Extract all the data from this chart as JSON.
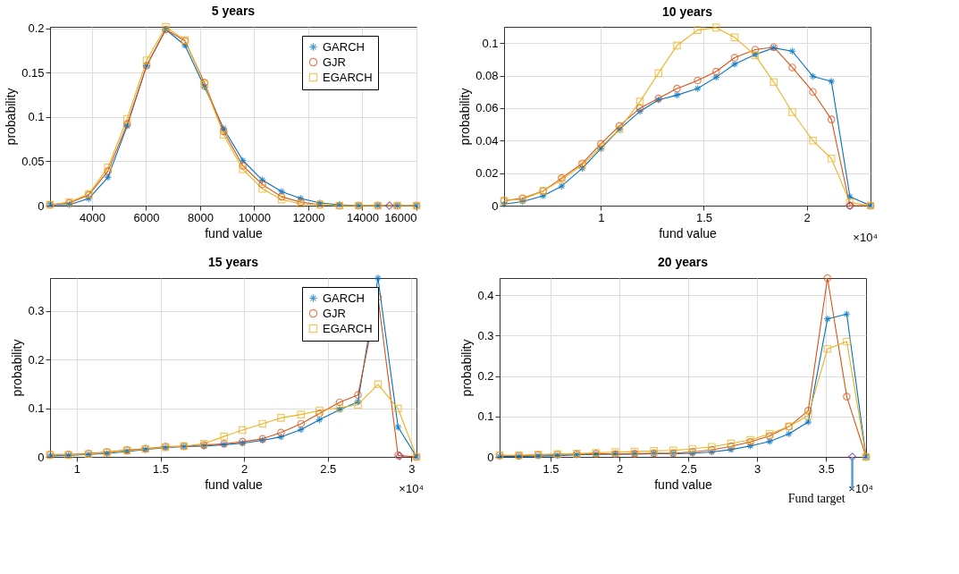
{
  "chart_data": [
    {
      "type": "line",
      "title": "5 years",
      "xlabel": "fund value",
      "ylabel": "probability",
      "xlim": [
        2450,
        16000
      ],
      "ylim": [
        0,
        0.202
      ],
      "xticks": [
        4000,
        6000,
        8000,
        10000,
        12000,
        14000,
        16000
      ],
      "yticks": [
        0,
        0.05,
        0.1,
        0.15,
        0.2
      ],
      "grid": true,
      "legend": "top right",
      "x": [
        2450,
        3160,
        3880,
        4590,
        5300,
        6020,
        6730,
        7440,
        8160,
        8870,
        9580,
        10300,
        11010,
        11720,
        12430,
        13150,
        13860,
        14570,
        15290,
        16000
      ],
      "series": [
        {
          "name": "GARCH",
          "color": "#0072bd",
          "marker": "cross",
          "values": [
            0.001,
            0.001,
            0.008,
            0.032,
            0.09,
            0.158,
            0.199,
            0.181,
            0.134,
            0.087,
            0.051,
            0.029,
            0.016,
            0.008,
            0.003,
            0.001,
            0,
            0,
            0,
            0
          ]
        },
        {
          "name": "GJR",
          "color": "#d95319",
          "marker": "circle",
          "values": [
            0.001,
            0.003,
            0.012,
            0.039,
            0.092,
            0.158,
            0.199,
            0.186,
            0.139,
            0.084,
            0.045,
            0.024,
            0.01,
            0.004,
            0.001,
            0,
            0,
            0,
            0,
            0
          ]
        },
        {
          "name": "EGARCH",
          "color": "#edb120",
          "marker": "square",
          "values": [
            0.001,
            0.004,
            0.013,
            0.043,
            0.098,
            0.164,
            0.202,
            0.187,
            0.137,
            0.08,
            0.041,
            0.019,
            0.007,
            0.002,
            0.001,
            0,
            0,
            0,
            0,
            0
          ]
        },
        {
          "type": "scatter",
          "color": "#7e2f8e",
          "marker": "diamond",
          "x": [
            15000
          ],
          "values": [
            0
          ]
        }
      ]
    },
    {
      "type": "line",
      "title": "10 years",
      "xlabel": "fund value",
      "ylabel": "probability",
      "xlim": [
        0.53,
        2.31
      ],
      "ylim": [
        0,
        0.11
      ],
      "xticks": [
        1,
        1.5,
        2
      ],
      "yticks": [
        0,
        0.02,
        0.04,
        0.06,
        0.08,
        0.1
      ],
      "grid": true,
      "legend": "center",
      "annotations": [
        "×10⁴"
      ],
      "x": [
        0.53,
        0.62,
        0.72,
        0.81,
        0.91,
        1.0,
        1.09,
        1.19,
        1.28,
        1.37,
        1.47,
        1.56,
        1.65,
        1.75,
        1.84,
        1.93,
        2.03,
        2.12,
        2.21,
        2.31
      ],
      "series": [
        {
          "name": "GARCH",
          "color": "#0072bd",
          "marker": "cross",
          "values": [
            0.001,
            0.0025,
            0.006,
            0.012,
            0.023,
            0.035,
            0.047,
            0.058,
            0.065,
            0.068,
            0.072,
            0.079,
            0.087,
            0.093,
            0.097,
            0.095,
            0.0795,
            0.0765,
            0.0055,
            0
          ]
        },
        {
          "name": "GJR",
          "color": "#d95319",
          "marker": "circle",
          "values": [
            0.003,
            0.0045,
            0.009,
            0.017,
            0.026,
            0.038,
            0.049,
            0.06,
            0.066,
            0.072,
            0.077,
            0.0825,
            0.091,
            0.096,
            0.0975,
            0.085,
            0.07,
            0.053,
            0,
            0
          ]
        },
        {
          "name": "EGARCH",
          "color": "#edb120",
          "marker": "square",
          "values": [
            0.003,
            0.004,
            0.009,
            0.016,
            0.025,
            0.036,
            0.047,
            0.064,
            0.0815,
            0.0985,
            0.108,
            0.1095,
            0.1035,
            0.0925,
            0.076,
            0.0575,
            0.04,
            0.029,
            0.002,
            0
          ]
        },
        {
          "type": "scatter",
          "color": "#7e2f8e",
          "marker": "diamond",
          "x": [
            2.21
          ],
          "values": [
            0
          ]
        }
      ]
    },
    {
      "type": "line",
      "title": "15 years",
      "xlabel": "fund value",
      "ylabel": "probability",
      "xlim": [
        0.84,
        3.03
      ],
      "ylim": [
        0,
        0.367
      ],
      "xticks": [
        1,
        1.5,
        2,
        2.5,
        3
      ],
      "yticks": [
        0,
        0.1,
        0.2,
        0.3
      ],
      "grid": true,
      "legend": "top right",
      "annotations": [
        "×10⁴"
      ],
      "x": [
        0.84,
        0.95,
        1.07,
        1.18,
        1.3,
        1.41,
        1.53,
        1.64,
        1.76,
        1.88,
        1.99,
        2.11,
        2.22,
        2.34,
        2.45,
        2.57,
        2.68,
        2.8,
        2.92,
        3.03
      ],
      "series": [
        {
          "name": "GARCH",
          "color": "#0072bd",
          "marker": "cross",
          "values": [
            0.002,
            0.003,
            0.005,
            0.007,
            0.011,
            0.015,
            0.019,
            0.021,
            0.022,
            0.025,
            0.028,
            0.034,
            0.041,
            0.056,
            0.076,
            0.097,
            0.113,
            0.367,
            0.061,
            0
          ]
        },
        {
          "name": "GJR",
          "color": "#d95319",
          "marker": "circle",
          "values": [
            0.005,
            0.005,
            0.007,
            0.01,
            0.014,
            0.017,
            0.021,
            0.022,
            0.024,
            0.027,
            0.031,
            0.037,
            0.05,
            0.068,
            0.089,
            0.112,
            0.127,
            0.328,
            0.003,
            0
          ]
        },
        {
          "name": "EGARCH",
          "color": "#edb120",
          "marker": "square",
          "values": [
            0.004,
            0.004,
            0.006,
            0.009,
            0.013,
            0.016,
            0.02,
            0.022,
            0.027,
            0.042,
            0.055,
            0.068,
            0.08,
            0.087,
            0.095,
            0.101,
            0.107,
            0.149,
            0.099,
            0
          ]
        },
        {
          "type": "scatter",
          "color": "#7e2f8e",
          "marker": "diamond",
          "x": [
            2.93
          ],
          "values": [
            0.002
          ]
        }
      ]
    },
    {
      "type": "line",
      "title": "20 years",
      "xlabel": "fund value",
      "ylabel": "probability",
      "xlim": [
        1.13,
        3.79
      ],
      "ylim": [
        0,
        0.442
      ],
      "xticks": [
        1.5,
        2,
        2.5,
        3,
        3.5
      ],
      "yticks": [
        0,
        0.1,
        0.2,
        0.3,
        0.4
      ],
      "grid": true,
      "legend": "top right",
      "annotations": [
        "×10⁴",
        {
          "text": "Fund target",
          "x": 3.69,
          "y": 0
        }
      ],
      "x": [
        1.13,
        1.27,
        1.41,
        1.55,
        1.69,
        1.83,
        1.97,
        2.11,
        2.25,
        2.39,
        2.53,
        2.67,
        2.81,
        2.95,
        3.09,
        3.23,
        3.37,
        3.51,
        3.65,
        3.79
      ],
      "series": [
        {
          "name": "GARCH",
          "color": "#0072bd",
          "marker": "cross",
          "values": [
            0.001,
            0.001,
            0.002,
            0.003,
            0.005,
            0.006,
            0.007,
            0.007,
            0.008,
            0.008,
            0.009,
            0.012,
            0.018,
            0.027,
            0.038,
            0.057,
            0.086,
            0.341,
            0.353,
            0
          ]
        },
        {
          "name": "GJR",
          "color": "#d95319",
          "marker": "circle",
          "values": [
            0.004,
            0.003,
            0.005,
            0.006,
            0.007,
            0.008,
            0.007,
            0.008,
            0.009,
            0.009,
            0.012,
            0.017,
            0.026,
            0.037,
            0.052,
            0.075,
            0.114,
            0.442,
            0.149,
            0
          ]
        },
        {
          "name": "EGARCH",
          "color": "#edb120",
          "marker": "square",
          "values": [
            0.004,
            0.004,
            0.006,
            0.007,
            0.008,
            0.01,
            0.012,
            0.013,
            0.015,
            0.016,
            0.02,
            0.025,
            0.033,
            0.042,
            0.057,
            0.075,
            0.102,
            0.267,
            0.285,
            0
          ]
        },
        {
          "type": "scatter",
          "color": "#7e2f8e",
          "marker": "diamond",
          "x": [
            3.69
          ],
          "values": [
            0
          ]
        }
      ]
    }
  ]
}
